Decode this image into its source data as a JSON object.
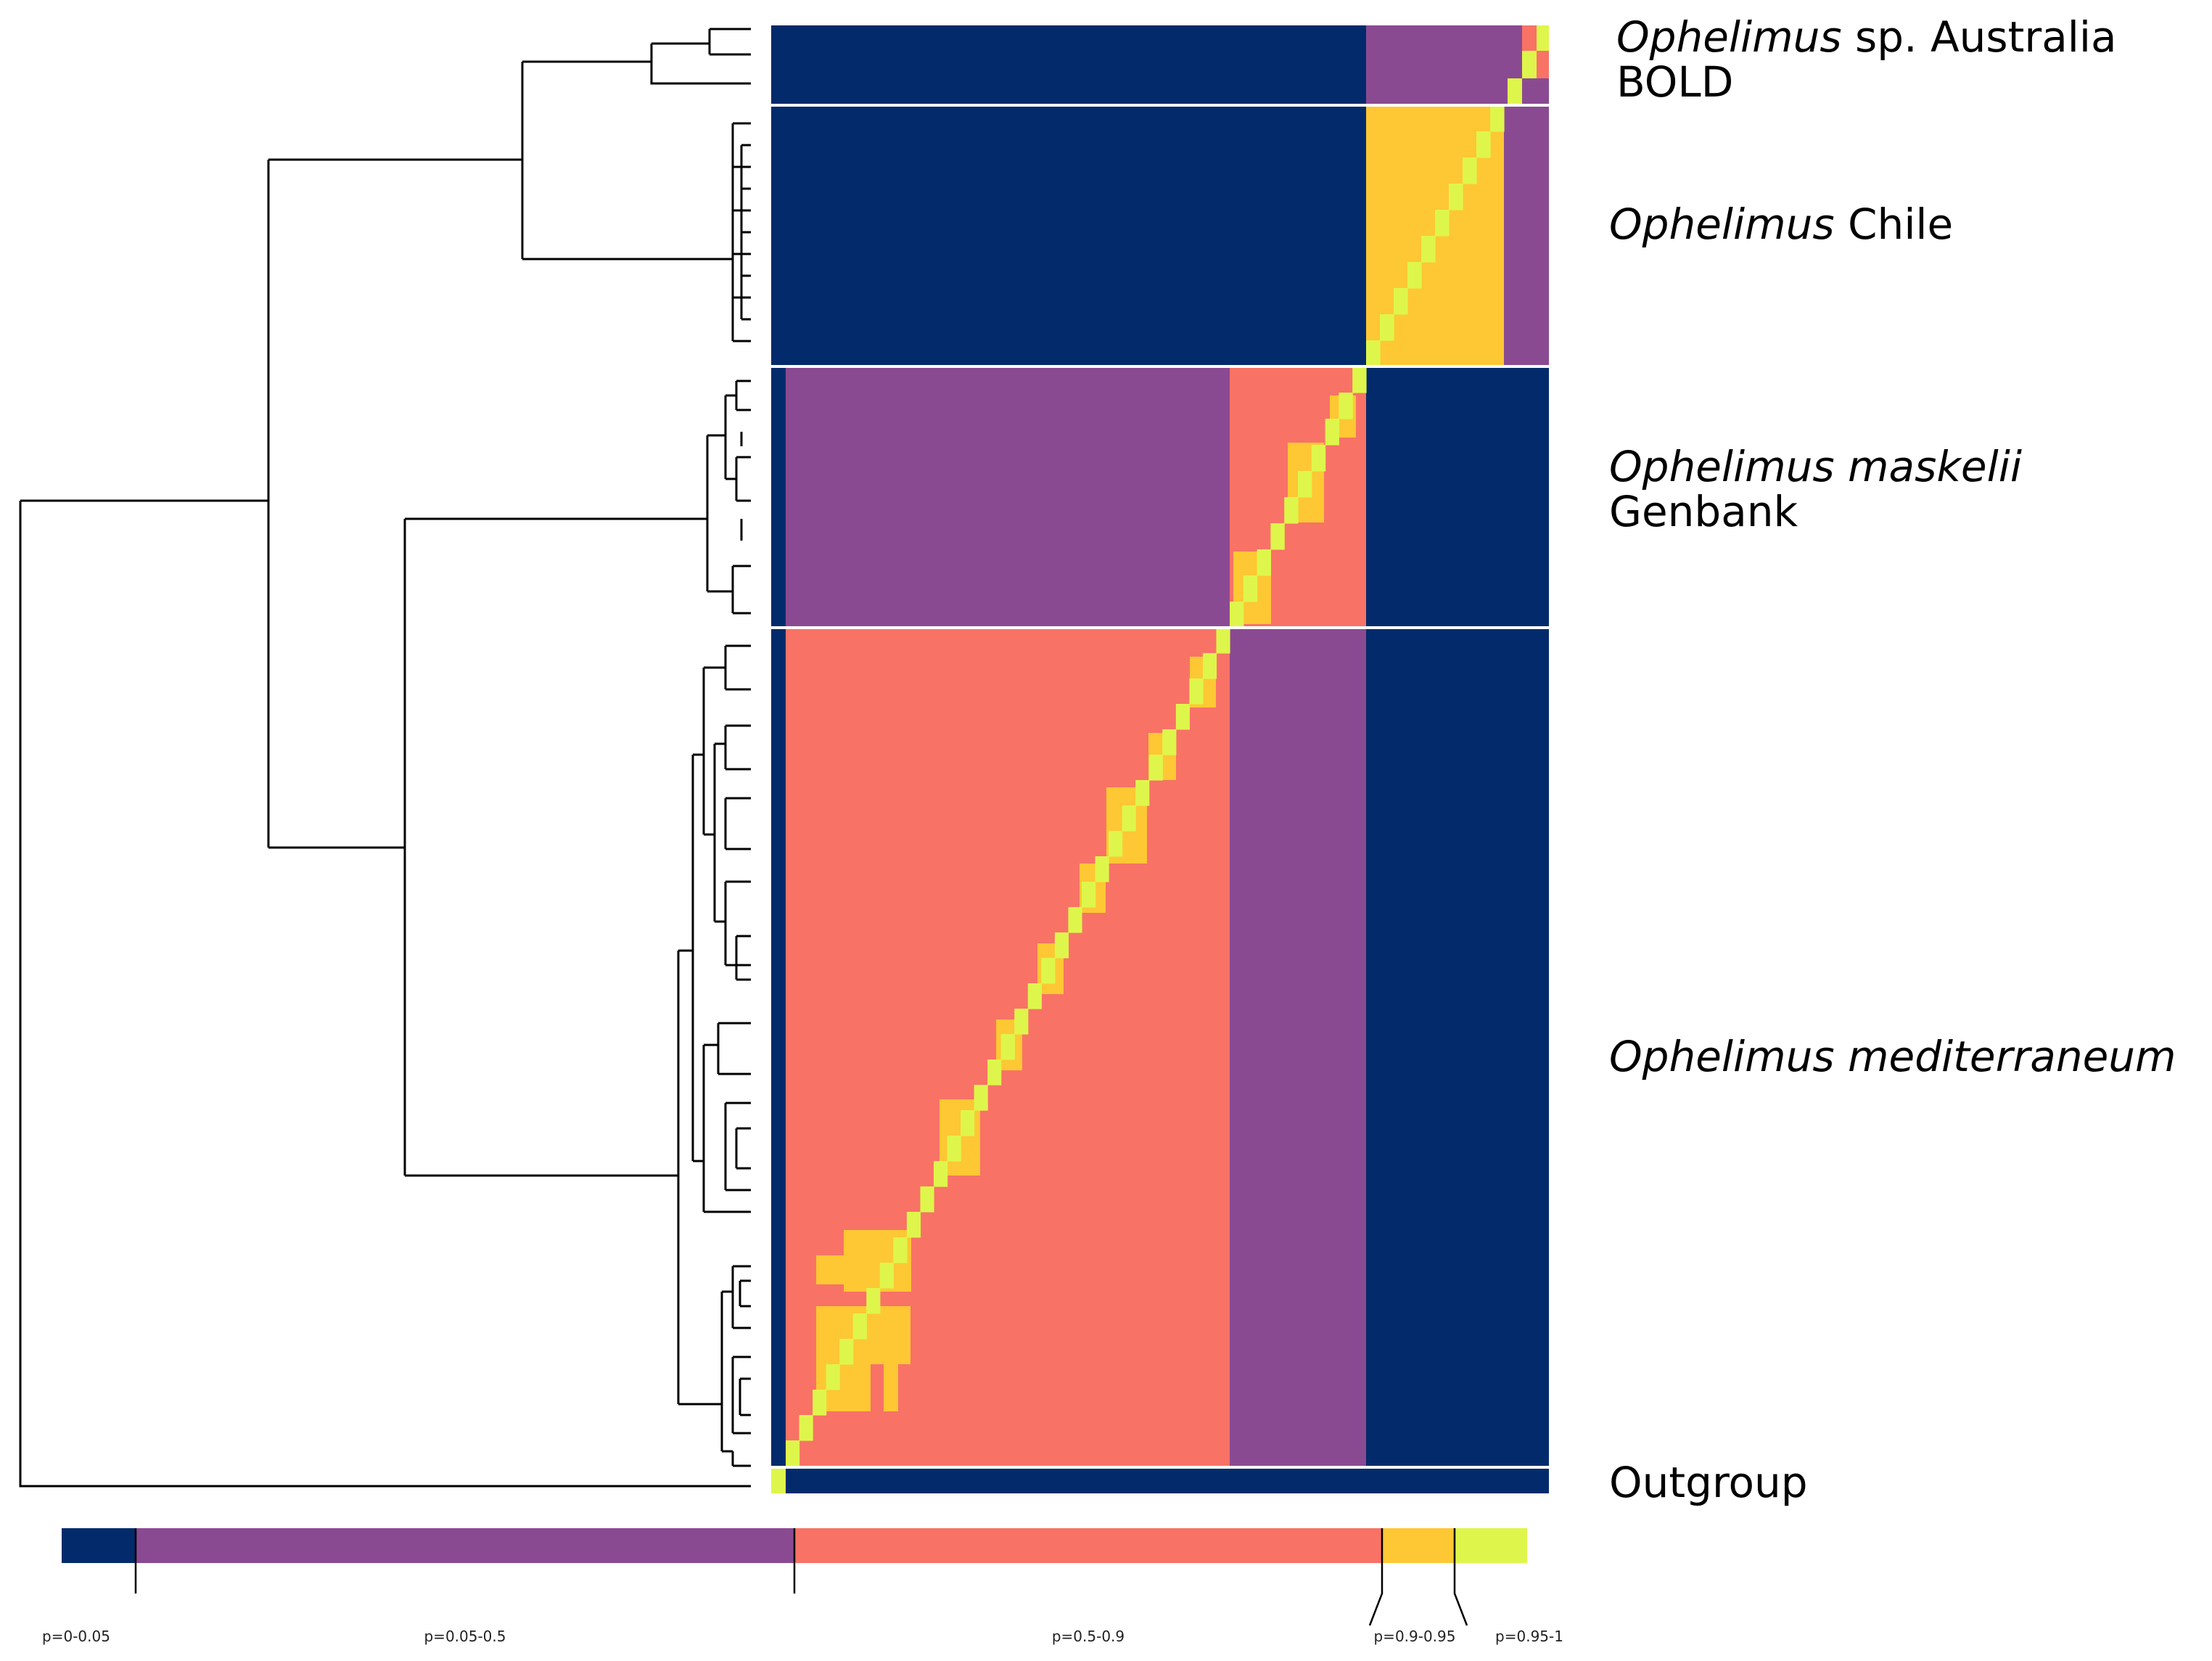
{
  "figure": {
    "colors": {
      "p_0_005": "#032b6b",
      "p_005_05": "#8a4a92",
      "p_05_09": "#f87266",
      "p_09_095": "#fec734",
      "p_095_1": "#def64b",
      "tree": "#000000",
      "separator": "#ffffff"
    },
    "clades": [
      {
        "id": "australia",
        "italic": "Ophelimus",
        "rest": " sp. Australia",
        "line2": "BOLD"
      },
      {
        "id": "chile",
        "italic": "Ophelimus",
        "rest": " Chile",
        "line2": ""
      },
      {
        "id": "maskelii",
        "italic": "Ophelimus maskelii",
        "rest": "",
        "line2": "Genbank"
      },
      {
        "id": "mediterraneum",
        "italic": "Ophelimus mediterraneum",
        "rest": "",
        "line2": ""
      },
      {
        "id": "outgroup",
        "italic": "",
        "rest": "Outgroup",
        "line2": ""
      }
    ],
    "legend": {
      "bins": [
        {
          "label": "p=0-0.05",
          "color_key": "p_0_005"
        },
        {
          "label": "p=0.05-0.5",
          "color_key": "p_005_05"
        },
        {
          "label": "p=0.5-0.9",
          "color_key": "p_05_09"
        },
        {
          "label": "p=0.9-0.95",
          "color_key": "p_09_095"
        },
        {
          "label": "p=0.95-1",
          "color_key": "p_095_1"
        }
      ]
    }
  }
}
